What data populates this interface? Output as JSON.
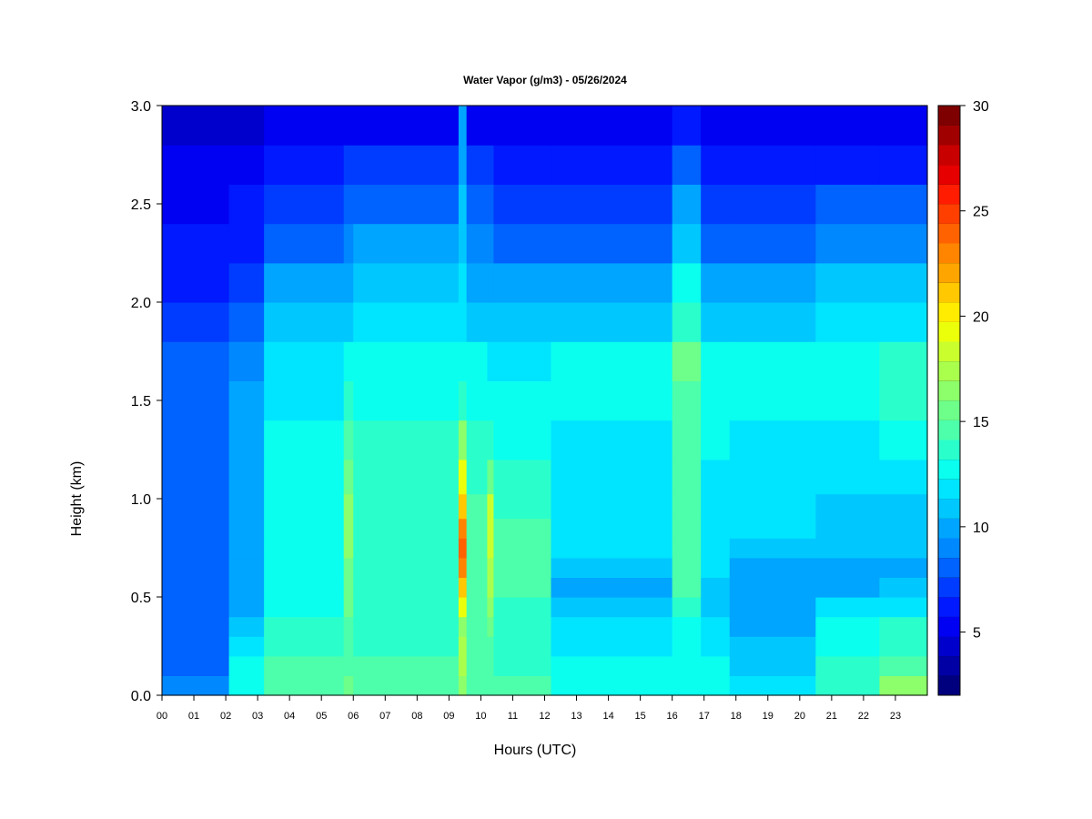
{
  "chart_data": {
    "type": "heatmap",
    "title": "Water Vapor (g/m3) - 05/26/2024",
    "xlabel": "Hours (UTC)",
    "ylabel": "Height (km)",
    "x_tick_labels": [
      "00",
      "01",
      "02",
      "03",
      "04",
      "05",
      "06",
      "07",
      "08",
      "09",
      "10",
      "11",
      "12",
      "13",
      "14",
      "15",
      "16",
      "17",
      "18",
      "19",
      "20",
      "21",
      "22",
      "23"
    ],
    "x_ticks": [
      0,
      1,
      2,
      3,
      4,
      5,
      6,
      7,
      8,
      9,
      10,
      11,
      12,
      13,
      14,
      15,
      16,
      17,
      18,
      19,
      20,
      21,
      22,
      23
    ],
    "xlim": [
      0,
      24
    ],
    "y_tick_labels": [
      "0.0",
      "0.5",
      "1.0",
      "1.5",
      "2.0",
      "2.5",
      "3.0"
    ],
    "y_ticks": [
      0,
      0.5,
      1.0,
      1.5,
      2.0,
      2.5,
      3.0
    ],
    "ylim": [
      0,
      3.0
    ],
    "colorbar": {
      "label": "",
      "tick_labels": [
        "5",
        "10",
        "15",
        "20",
        "25",
        "30"
      ],
      "ticks": [
        5,
        10,
        15,
        20,
        25,
        30
      ],
      "range": [
        2,
        30
      ],
      "colors": [
        "#00007f",
        "#0000a5",
        "#0000cc",
        "#0000f2",
        "#0019ff",
        "#003cff",
        "#0062ff",
        "#0088ff",
        "#00a5ff",
        "#00c8ff",
        "#00e5ff",
        "#0affef",
        "#2affcc",
        "#4dffaa",
        "#6dff89",
        "#8dff6a",
        "#aaff4d",
        "#caff2d",
        "#ecff0a",
        "#ffec00",
        "#ffc800",
        "#ffa500",
        "#ff8500",
        "#ff6200",
        "#ff3f00",
        "#ff1c00",
        "#e60000",
        "#c80000",
        "#a00000",
        "#7f0000"
      ]
    },
    "height_bins_km": [
      0.05,
      0.15,
      0.25,
      0.35,
      0.45,
      0.55,
      0.65,
      0.75,
      0.85,
      0.95,
      1.1,
      1.3,
      1.5,
      1.7,
      1.9,
      2.1,
      2.3,
      2.5,
      2.7,
      2.9
    ],
    "profiles": [
      {
        "start": 0.0,
        "end": 2.1,
        "values": [
          9.0,
          8.5,
          8.5,
          8.5,
          8.0,
          8.0,
          8.5,
          8.5,
          8.5,
          8.5,
          8.5,
          8.5,
          8.5,
          8.0,
          7.0,
          6.5,
          6.0,
          5.5,
          5.0,
          4.0
        ]
      },
      {
        "start": 2.1,
        "end": 3.2,
        "values": [
          13.0,
          12.5,
          12.0,
          11.0,
          10.0,
          9.5,
          9.5,
          9.5,
          9.5,
          9.5,
          9.5,
          9.5,
          9.5,
          9.0,
          8.0,
          7.0,
          6.5,
          6.0,
          5.5,
          4.5
        ]
      },
      {
        "start": 3.2,
        "end": 5.7,
        "values": [
          15.0,
          14.5,
          14.0,
          13.5,
          13.0,
          13.0,
          13.0,
          13.0,
          13.0,
          12.5,
          12.5,
          12.5,
          12.0,
          11.5,
          10.5,
          9.5,
          8.5,
          7.5,
          6.5,
          5.0
        ]
      },
      {
        "start": 5.7,
        "end": 6.0,
        "values": [
          15.5,
          15.0,
          14.5,
          14.5,
          15.5,
          15.5,
          15.5,
          16.0,
          16.5,
          16.5,
          15.5,
          14.5,
          13.5,
          12.5,
          11.0,
          10.0,
          9.0,
          8.0,
          7.0,
          5.5
        ]
      },
      {
        "start": 6.0,
        "end": 9.3,
        "values": [
          15.0,
          14.5,
          14.0,
          14.0,
          14.0,
          14.0,
          14.0,
          14.0,
          14.0,
          14.0,
          13.5,
          13.5,
          13.0,
          12.5,
          11.5,
          10.5,
          9.5,
          8.5,
          7.0,
          5.5
        ]
      },
      {
        "start": 9.3,
        "end": 9.55,
        "values": [
          16.0,
          17.0,
          17.0,
          16.5,
          19.0,
          21.0,
          23.0,
          24.0,
          23.0,
          21.0,
          19.0,
          16.0,
          14.0,
          13.0,
          12.0,
          11.5,
          11.0,
          10.5,
          10.0,
          10.0
        ]
      },
      {
        "start": 9.55,
        "end": 10.2,
        "values": [
          15.0,
          14.5,
          14.5,
          14.5,
          14.5,
          15.0,
          15.0,
          15.0,
          15.0,
          14.5,
          14.0,
          13.5,
          13.0,
          12.5,
          11.0,
          10.0,
          9.0,
          8.0,
          7.0,
          5.5
        ]
      },
      {
        "start": 10.2,
        "end": 10.4,
        "values": [
          15.0,
          15.0,
          15.0,
          15.5,
          16.5,
          17.0,
          17.5,
          18.0,
          18.5,
          18.0,
          15.5,
          14.0,
          13.0,
          12.0,
          11.0,
          10.0,
          9.0,
          8.0,
          7.0,
          5.5
        ]
      },
      {
        "start": 10.4,
        "end": 12.2,
        "values": [
          14.5,
          14.0,
          14.0,
          14.0,
          14.0,
          14.5,
          14.5,
          14.5,
          14.5,
          14.0,
          13.5,
          13.0,
          12.5,
          12.0,
          10.5,
          9.5,
          8.5,
          7.5,
          6.5,
          5.0
        ]
      },
      {
        "start": 12.2,
        "end": 16.0,
        "values": [
          13.0,
          12.5,
          12.0,
          11.5,
          10.5,
          10.0,
          11.0,
          12.0,
          12.0,
          12.0,
          12.0,
          12.0,
          13.0,
          13.0,
          11.0,
          9.5,
          8.5,
          7.5,
          6.5,
          5.0
        ]
      },
      {
        "start": 16.0,
        "end": 16.9,
        "values": [
          13.0,
          12.5,
          12.5,
          13.0,
          14.0,
          14.5,
          14.5,
          14.5,
          14.5,
          14.5,
          14.5,
          14.5,
          15.0,
          15.5,
          14.0,
          12.5,
          11.0,
          9.5,
          8.0,
          6.0
        ]
      },
      {
        "start": 16.9,
        "end": 17.8,
        "values": [
          13.0,
          12.5,
          12.0,
          11.5,
          11.0,
          11.0,
          11.5,
          12.0,
          12.0,
          12.0,
          12.0,
          12.5,
          13.0,
          12.5,
          11.0,
          10.0,
          8.5,
          7.5,
          6.5,
          5.0
        ]
      },
      {
        "start": 17.8,
        "end": 20.5,
        "values": [
          12.0,
          11.0,
          10.5,
          10.0,
          10.0,
          9.5,
          9.5,
          11.0,
          11.5,
          11.5,
          11.5,
          12.0,
          12.5,
          12.5,
          11.0,
          10.0,
          8.5,
          7.5,
          6.5,
          5.0
        ]
      },
      {
        "start": 20.5,
        "end": 22.5,
        "values": [
          14.0,
          13.5,
          13.0,
          12.5,
          11.5,
          10.0,
          10.0,
          10.5,
          11.0,
          11.0,
          11.5,
          12.0,
          12.5,
          12.5,
          11.5,
          10.5,
          9.0,
          8.0,
          6.5,
          5.0
        ]
      },
      {
        "start": 22.5,
        "end": 24.0,
        "values": [
          16.0,
          15.0,
          14.0,
          13.5,
          12.0,
          10.5,
          10.0,
          10.5,
          11.0,
          11.0,
          11.5,
          12.5,
          13.5,
          13.5,
          12.0,
          10.5,
          9.0,
          8.0,
          6.5,
          5.0
        ]
      }
    ]
  }
}
